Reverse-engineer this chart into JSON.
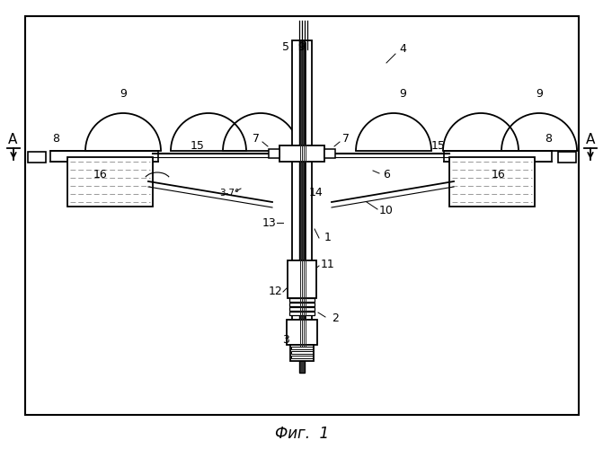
{
  "title": "Фиг.  1",
  "bg_color": "#ffffff",
  "fig_width": 6.71,
  "fig_height": 5.0,
  "dpi": 100
}
